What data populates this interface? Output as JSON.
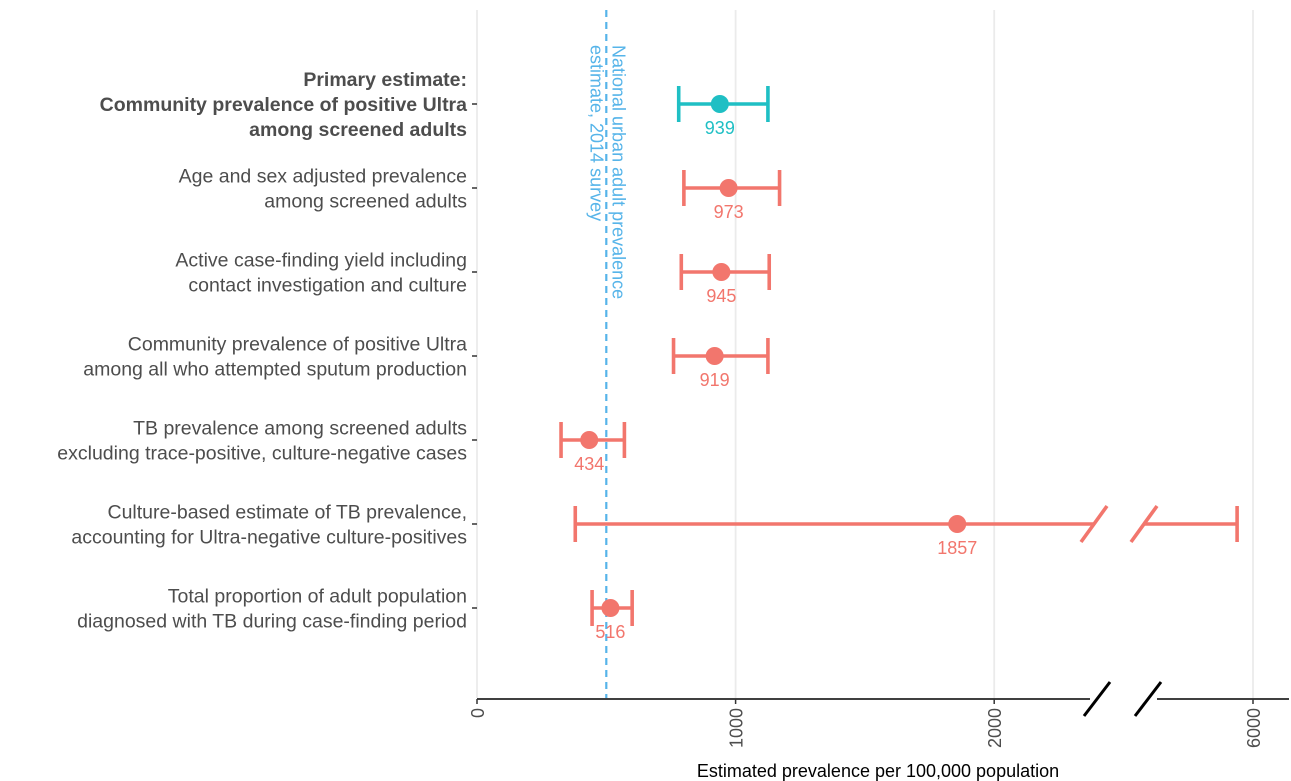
{
  "chart_data": {
    "type": "forest",
    "xlabel": "Estimated prevalence per 100,000 population",
    "x_ticks": [
      {
        "value": 0,
        "label": "0"
      },
      {
        "value": 1000,
        "label": "1000"
      },
      {
        "value": 2000,
        "label": "2000"
      },
      {
        "value": 6000,
        "label": "6000"
      }
    ],
    "axis_break": {
      "from": 2400,
      "to": 5600
    },
    "grid": true,
    "reference_line": {
      "value": 500,
      "label_lines": [
        "National urban adult prevalence",
        "estimate, 2014 survey"
      ],
      "color": "#56B4E9"
    },
    "colors": {
      "primary": "#1FBFC4",
      "secondary": "#F2766D",
      "text": "#4d4d4d"
    },
    "rows": [
      {
        "label_lines": [
          "Primary estimate:",
          "Community prevalence of positive Ultra",
          "among screened adults"
        ],
        "estimate": 939,
        "value_label": "939",
        "lower": 780,
        "upper": 1125,
        "primary": true
      },
      {
        "label_lines": [
          "Age and sex adjusted prevalence",
          "among screened adults"
        ],
        "estimate": 973,
        "value_label": "973",
        "lower": 800,
        "upper": 1170,
        "primary": false
      },
      {
        "label_lines": [
          "Active case-finding yield including",
          "contact investigation and culture"
        ],
        "estimate": 945,
        "value_label": "945",
        "lower": 790,
        "upper": 1130,
        "primary": false
      },
      {
        "label_lines": [
          "Community prevalence of positive Ultra",
          "among all who attempted sputum production"
        ],
        "estimate": 919,
        "value_label": "919",
        "lower": 760,
        "upper": 1125,
        "primary": false
      },
      {
        "label_lines": [
          "TB prevalence among screened adults",
          "excluding trace-positive, culture-negative cases"
        ],
        "estimate": 434,
        "value_label": "434",
        "lower": 325,
        "upper": 570,
        "primary": false
      },
      {
        "label_lines": [
          "Culture-based estimate of TB prevalence,",
          "accounting for Ultra-negative culture-positives"
        ],
        "estimate": 1857,
        "value_label": "1857",
        "lower": 380,
        "upper": 5940,
        "primary": false
      },
      {
        "label_lines": [
          "Total proportion of adult population",
          "diagnosed with TB during case-finding period"
        ],
        "estimate": 516,
        "value_label": "516",
        "lower": 445,
        "upper": 600,
        "primary": false
      }
    ]
  }
}
